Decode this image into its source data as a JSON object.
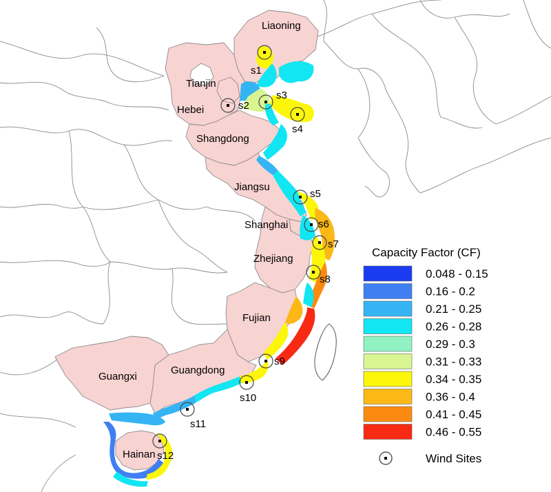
{
  "provinces": [
    {
      "key": "liaoning",
      "name": "Liaoning"
    },
    {
      "key": "tianjin",
      "name": "Tianjin"
    },
    {
      "key": "hebei",
      "name": "Hebei"
    },
    {
      "key": "shangdong",
      "name": "Shangdong"
    },
    {
      "key": "jiangsu",
      "name": "Jiangsu"
    },
    {
      "key": "shanghai",
      "name": "Shanghai"
    },
    {
      "key": "zhejiang",
      "name": "Zhejiang"
    },
    {
      "key": "fujian",
      "name": "Fujian"
    },
    {
      "key": "guangdong",
      "name": "Guangdong"
    },
    {
      "key": "guangxi",
      "name": "Guangxi"
    },
    {
      "key": "hainan",
      "name": "Hainan"
    }
  ],
  "sites": [
    "s1",
    "s2",
    "s3",
    "s4",
    "s5",
    "s6",
    "s7",
    "s8",
    "s9",
    "s10",
    "s11",
    "s12"
  ],
  "legend": {
    "title": "Capacity Factor (CF)",
    "classes": [
      {
        "label": "0.048 - 0.15",
        "color": "#1a3cf0"
      },
      {
        "label": "0.16 - 0.2",
        "color": "#3f7ff2"
      },
      {
        "label": "0.21 - 0.25",
        "color": "#35b4f4"
      },
      {
        "label": "0.26 - 0.28",
        "color": "#11e6f2"
      },
      {
        "label": "0.29 - 0.3",
        "color": "#8ff2c0"
      },
      {
        "label": "0.31 - 0.33",
        "color": "#d8f592"
      },
      {
        "label": "0.34 - 0.35",
        "color": "#fcf60a"
      },
      {
        "label": "0.36 - 0.4",
        "color": "#fbb817"
      },
      {
        "label": "0.41 - 0.45",
        "color": "#fb8a12"
      },
      {
        "label": "0.46 - 0.55",
        "color": "#f82a14"
      }
    ],
    "site_label": "Wind Sites"
  },
  "colors": {
    "province_fill": "#f7d3d1",
    "province_border": "#8c8c8c",
    "boundary": "#7a7a7a",
    "background": "#ffffff"
  }
}
